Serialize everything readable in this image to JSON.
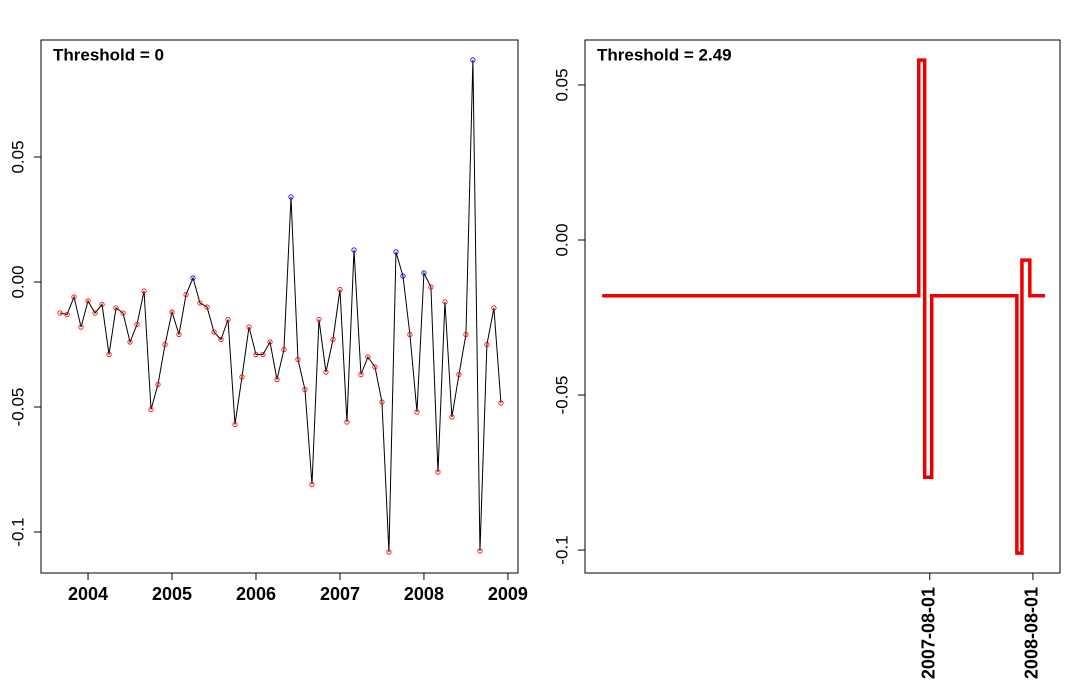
{
  "chart_data": [
    {
      "type": "line",
      "title": "Threshold = 0",
      "x": [
        2003.667,
        2003.75,
        2003.833,
        2003.917,
        2004,
        2004.083,
        2004.167,
        2004.25,
        2004.333,
        2004.417,
        2004.5,
        2004.583,
        2004.667,
        2004.75,
        2004.833,
        2004.917,
        2005,
        2005.083,
        2005.167,
        2005.25,
        2005.333,
        2005.417,
        2005.5,
        2005.583,
        2005.667,
        2005.75,
        2005.833,
        2005.917,
        2006,
        2006.083,
        2006.167,
        2006.25,
        2006.333,
        2006.417,
        2006.5,
        2006.583,
        2006.667,
        2006.75,
        2006.833,
        2006.917,
        2007,
        2007.083,
        2007.167,
        2007.25,
        2007.333,
        2007.417,
        2007.5,
        2007.583,
        2007.667,
        2007.75,
        2007.833,
        2007.917,
        2008,
        2008.083,
        2008.167,
        2008.25,
        2008.333,
        2008.417,
        2008.5,
        2008.583,
        2008.667,
        2008.75,
        2008.833,
        2008.917
      ],
      "values": [
        -0.0124,
        -0.013,
        -0.006,
        -0.018,
        -0.0076,
        -0.0124,
        -0.009,
        -0.029,
        -0.0104,
        -0.0124,
        -0.024,
        -0.017,
        -0.0036,
        -0.051,
        -0.041,
        -0.025,
        -0.012,
        -0.021,
        -0.005,
        0.0016,
        -0.0084,
        -0.01,
        -0.02,
        -0.023,
        -0.015,
        -0.057,
        -0.038,
        -0.018,
        -0.029,
        -0.029,
        -0.024,
        -0.039,
        -0.027,
        0.034,
        -0.031,
        -0.043,
        -0.081,
        -0.015,
        -0.036,
        -0.023,
        -0.003,
        -0.056,
        0.0128,
        -0.037,
        -0.03,
        -0.034,
        -0.048,
        -0.108,
        0.012,
        0.0024,
        -0.021,
        -0.052,
        0.0036,
        -0.002,
        -0.076,
        -0.008,
        -0.054,
        -0.037,
        -0.021,
        0.0888,
        -0.1076,
        -0.025,
        -0.0104,
        -0.0484
      ],
      "color": "#000000",
      "marker_colors": {
        "above": "#0000ff",
        "below": "#ff0000"
      },
      "xlim": [
        2003.44,
        2009.12
      ],
      "xticks": [
        2004,
        2005,
        2006,
        2007,
        2008,
        2009
      ],
      "ylim": [
        -0.1164,
        0.0968
      ],
      "yticks": [
        -0.1,
        -0.05,
        {
          "value": 0,
          "label": "0.00"
        },
        0.05
      ]
    },
    {
      "type": "step",
      "title": "Threshold = 2.49",
      "x": [
        "2004-05-26",
        "2007-06-23",
        "2007-07-14",
        "2007-08-08",
        "2008-06-05",
        "2008-06-23",
        "2008-07-21",
        "2008-09-13"
      ],
      "values": [
        -0.018,
        0.058,
        -0.0765,
        -0.018,
        -0.101,
        -0.0065,
        -0.018,
        -0.018
      ],
      "color": "#ee0000",
      "xlim": [
        "2004-03-26",
        "2008-11-05"
      ],
      "xticks": [
        "2007-08-01",
        "2008-08-01"
      ],
      "ylim": [
        -0.1074,
        0.0645
      ],
      "yticks": [
        -0.1,
        -0.05,
        {
          "value": 0,
          "label": "0.00"
        },
        0.05
      ]
    }
  ]
}
